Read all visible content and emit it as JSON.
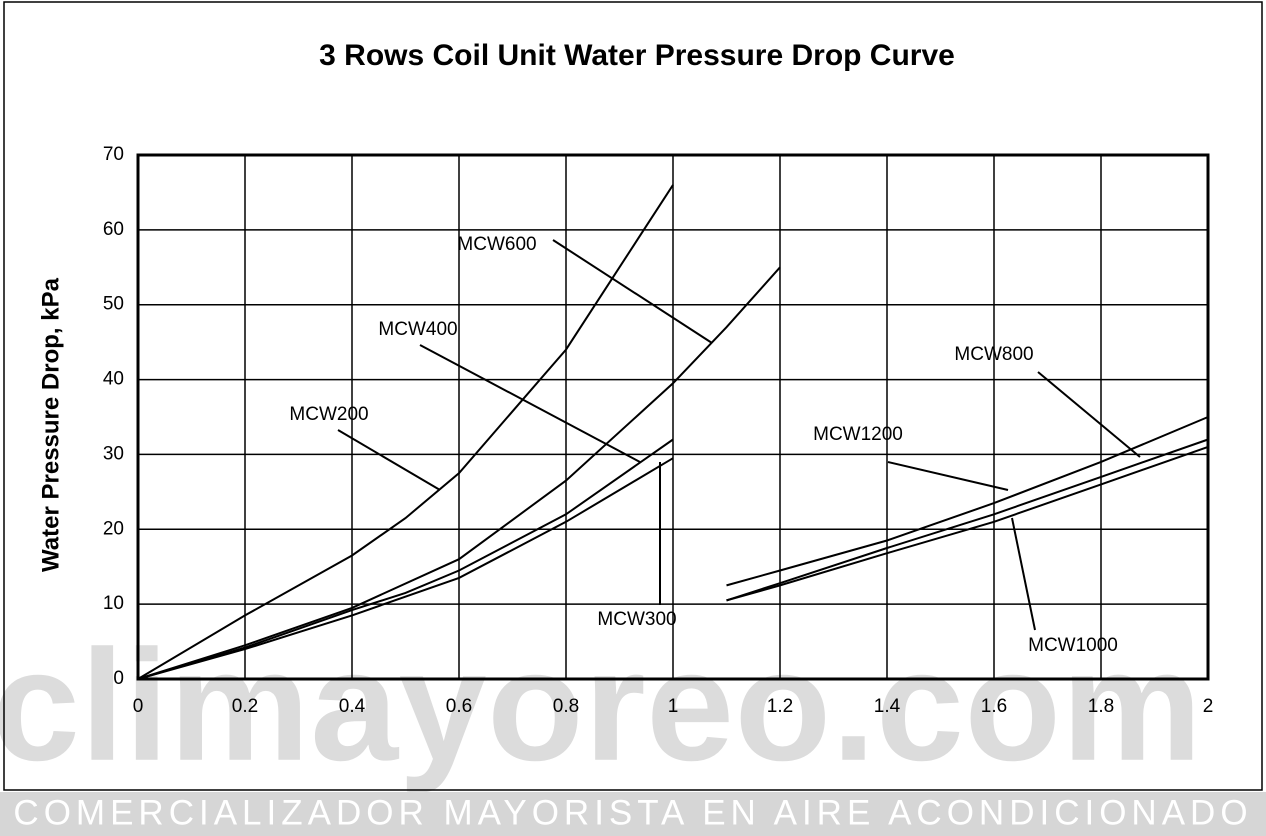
{
  "chart_data": {
    "type": "line",
    "title": "3 Rows Coil Unit Water Pressure Drop Curve",
    "y_label": "Water Pressure Drop, kPa",
    "xlim": [
      0,
      2
    ],
    "xticks": [
      0,
      0.2,
      0.4,
      0.6,
      0.8,
      1,
      1.2,
      1.4,
      1.6,
      1.8,
      2
    ],
    "ylim": [
      0,
      70
    ],
    "yticks": [
      0,
      10,
      20,
      30,
      40,
      50,
      60,
      70
    ],
    "grid": true,
    "series": [
      {
        "name": "MCW200",
        "color": "#000000",
        "x": [
          0,
          0.2,
          0.4,
          0.5,
          0.6,
          0.8,
          1
        ],
        "values": [
          0,
          8.5,
          16.5,
          21.5,
          27.5,
          44,
          66
        ]
      },
      {
        "name": "MCW600",
        "color": "#000000",
        "x": [
          0,
          0.2,
          0.4,
          0.6,
          0.8,
          1,
          1.1,
          1.2
        ],
        "values": [
          0,
          4.5,
          9.5,
          16,
          26.5,
          39.5,
          47,
          55
        ]
      },
      {
        "name": "MCW400",
        "color": "#000000",
        "x": [
          0,
          0.2,
          0.4,
          0.5,
          0.6,
          0.8,
          1
        ],
        "values": [
          0,
          4.2,
          9.2,
          11.5,
          14.5,
          22,
          32
        ]
      },
      {
        "name": "MCW300",
        "color": "#000000",
        "x": [
          0,
          0.2,
          0.4,
          0.6,
          0.8,
          1
        ],
        "values": [
          0,
          4,
          8.5,
          13.5,
          21,
          29.5
        ]
      },
      {
        "name": "MCW1200",
        "color": "#000000",
        "x": [
          1.1,
          1.2,
          1.4,
          1.6,
          1.8,
          2
        ],
        "values": [
          12.5,
          14.5,
          18.5,
          23.5,
          29,
          35
        ]
      },
      {
        "name": "MCW800",
        "color": "#000000",
        "x": [
          1.1,
          1.2,
          1.4,
          1.6,
          1.8,
          2
        ],
        "values": [
          10.5,
          12.8,
          17.5,
          22,
          27,
          32
        ]
      },
      {
        "name": "MCW1000",
        "color": "#000000",
        "x": [
          1.1,
          1.2,
          1.4,
          1.6,
          1.8,
          2
        ],
        "values": [
          10.5,
          12.5,
          16.8,
          21,
          26,
          31
        ]
      }
    ]
  },
  "watermark": "climayoreo.com",
  "banner": "COMERCIALIZADOR MAYORISTA EN AIRE ACONDICIONADO"
}
